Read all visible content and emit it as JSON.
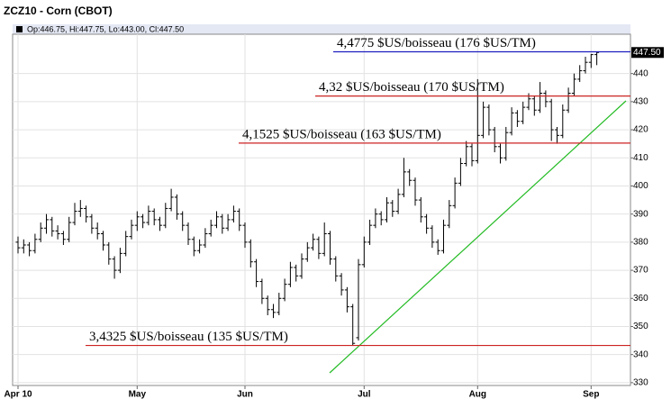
{
  "chart_data": {
    "type": "ohlc",
    "title": "ZCZ10 - Corn (CBOT)",
    "info": "Op:446.75, Hi:447.75, Lo:443.00, Cl:447.50",
    "color": "#000000",
    "categories": [
      "Apr 10",
      null,
      null,
      null,
      null,
      null,
      null,
      null,
      null,
      null,
      null,
      null,
      null,
      null,
      null,
      null,
      null,
      null,
      null,
      null,
      null,
      "May",
      null,
      null,
      null,
      null,
      null,
      null,
      null,
      null,
      null,
      null,
      null,
      null,
      null,
      null,
      null,
      null,
      null,
      null,
      "Jun",
      null,
      null,
      null,
      null,
      null,
      null,
      null,
      null,
      null,
      null,
      null,
      null,
      null,
      null,
      null,
      null,
      null,
      null,
      null,
      null,
      "Jul",
      null,
      null,
      null,
      null,
      null,
      null,
      null,
      null,
      null,
      null,
      null,
      null,
      null,
      null,
      null,
      null,
      null,
      null,
      null,
      "Aug",
      null,
      null,
      null,
      null,
      null,
      null,
      null,
      null,
      null,
      null,
      null,
      null,
      null,
      null,
      null,
      null,
      null,
      null,
      null,
      "Sep",
      null
    ],
    "bars": [
      [
        380,
        382,
        376,
        378
      ],
      [
        378,
        381,
        376,
        379
      ],
      [
        379,
        380,
        375,
        377
      ],
      [
        377,
        383,
        376,
        381
      ],
      [
        381,
        387,
        380,
        385
      ],
      [
        385,
        390,
        383,
        388
      ],
      [
        388,
        389,
        382,
        384
      ],
      [
        384,
        386,
        381,
        383
      ],
      [
        383,
        384,
        379,
        381
      ],
      [
        381,
        389,
        380,
        387
      ],
      [
        387,
        394,
        386,
        391
      ],
      [
        391,
        395,
        389,
        392
      ],
      [
        392,
        393,
        387,
        389
      ],
      [
        389,
        390,
        383,
        385
      ],
      [
        385,
        387,
        381,
        383
      ],
      [
        383,
        384,
        377,
        379
      ],
      [
        379,
        380,
        372,
        374
      ],
      [
        374,
        375,
        367,
        370
      ],
      [
        370,
        378,
        369,
        376
      ],
      [
        376,
        384,
        375,
        382
      ],
      [
        382,
        388,
        381,
        386
      ],
      [
        386,
        391,
        384,
        389
      ],
      [
        389,
        390,
        385,
        387
      ],
      [
        387,
        393,
        386,
        391
      ],
      [
        391,
        392,
        386,
        388
      ],
      [
        388,
        389,
        384,
        386
      ],
      [
        386,
        394,
        385,
        392
      ],
      [
        392,
        399,
        391,
        396
      ],
      [
        396,
        397,
        388,
        390
      ],
      [
        390,
        391,
        384,
        386
      ],
      [
        386,
        387,
        379,
        381
      ],
      [
        381,
        382,
        375,
        377
      ],
      [
        377,
        381,
        376,
        379
      ],
      [
        379,
        385,
        378,
        383
      ],
      [
        383,
        388,
        382,
        386
      ],
      [
        386,
        391,
        385,
        389
      ],
      [
        389,
        390,
        383,
        385
      ],
      [
        385,
        390,
        384,
        388
      ],
      [
        388,
        393,
        387,
        391
      ],
      [
        391,
        392,
        384,
        386
      ],
      [
        386,
        387,
        378,
        380
      ],
      [
        380,
        381,
        371,
        373
      ],
      [
        373,
        374,
        364,
        366
      ],
      [
        366,
        367,
        358,
        360
      ],
      [
        360,
        361,
        354,
        356
      ],
      [
        356,
        358,
        353,
        355
      ],
      [
        355,
        362,
        354,
        360
      ],
      [
        360,
        367,
        359,
        365
      ],
      [
        365,
        373,
        364,
        371
      ],
      [
        371,
        372,
        366,
        368
      ],
      [
        368,
        376,
        367,
        374
      ],
      [
        374,
        380,
        373,
        378
      ],
      [
        378,
        383,
        377,
        381
      ],
      [
        381,
        382,
        374,
        376
      ],
      [
        376,
        387,
        375,
        383
      ],
      [
        383,
        384,
        372,
        374
      ],
      [
        374,
        375,
        366,
        368
      ],
      [
        368,
        369,
        361,
        363
      ],
      [
        363,
        364,
        355,
        357
      ],
      [
        357,
        358,
        343.25,
        344
      ],
      [
        346,
        374,
        345,
        372
      ],
      [
        372,
        382,
        371,
        380
      ],
      [
        380,
        388,
        379,
        386
      ],
      [
        386,
        392,
        385,
        390
      ],
      [
        390,
        391,
        386,
        388
      ],
      [
        388,
        396,
        387,
        394
      ],
      [
        394,
        395,
        389,
        391
      ],
      [
        391,
        399,
        390,
        397
      ],
      [
        397,
        410,
        396,
        405
      ],
      [
        405,
        406,
        400,
        402
      ],
      [
        402,
        403,
        393,
        395
      ],
      [
        395,
        396,
        387,
        389
      ],
      [
        389,
        390,
        383,
        385
      ],
      [
        385,
        386,
        378,
        380
      ],
      [
        380,
        381,
        375.5,
        377
      ],
      [
        377,
        388,
        376,
        386
      ],
      [
        386,
        395,
        385,
        393
      ],
      [
        393,
        403,
        392,
        401
      ],
      [
        401,
        410,
        400,
        408
      ],
      [
        408,
        416,
        407,
        414
      ],
      [
        414,
        415,
        407,
        409
      ],
      [
        409,
        438,
        408,
        418
      ],
      [
        418,
        430,
        417,
        428
      ],
      [
        428,
        429,
        418,
        420
      ],
      [
        420,
        421,
        412,
        414
      ],
      [
        414,
        415,
        408,
        410
      ],
      [
        410,
        421,
        409,
        419
      ],
      [
        419,
        428,
        418,
        426
      ],
      [
        426,
        427,
        421,
        423
      ],
      [
        423,
        430,
        422,
        428
      ],
      [
        428,
        433,
        427,
        431
      ],
      [
        431,
        432,
        425,
        427
      ],
      [
        427,
        437,
        426,
        433
      ],
      [
        433,
        434,
        428,
        430
      ],
      [
        430,
        431,
        416,
        420
      ],
      [
        420,
        421,
        415,
        418
      ],
      [
        418,
        429,
        417,
        427
      ],
      [
        427,
        435,
        426,
        433
      ],
      [
        433,
        440,
        432,
        438
      ],
      [
        438,
        443,
        437,
        441
      ],
      [
        441,
        446,
        440,
        444
      ],
      [
        444,
        447,
        442,
        446.75
      ],
      [
        446.75,
        447.75,
        443,
        447.5
      ]
    ],
    "last_price": {
      "value": 447.5,
      "label": "447.50"
    },
    "annotations": [
      {
        "text": "4,4775 $US/boisseau (176 $US/TM)",
        "value": 447.75,
        "color": "#1f1fbf"
      },
      {
        "text": "4,32 $US/boisseau (170 $US/TM)",
        "value": 432,
        "color": "#cc2222"
      },
      {
        "text": "4,1525 $US/boisseau (163 $US/TM)",
        "value": 415.25,
        "color": "#cc2222"
      },
      {
        "text": "3,4325 $US/boisseau (135 $US/TM)",
        "value": 343.25,
        "color": "#cc2222"
      }
    ],
    "ylim": [
      329,
      454
    ],
    "yticks": [
      330,
      340,
      350,
      360,
      370,
      380,
      390,
      400,
      410,
      420,
      430,
      440
    ],
    "grid": true
  }
}
